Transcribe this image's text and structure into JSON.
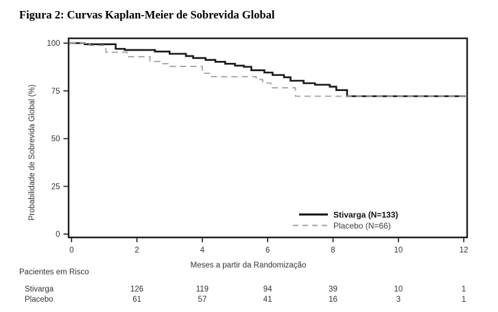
{
  "title": "Figura 2: Curvas Kaplan-Meier de Sobrevida Global",
  "chart_data": {
    "type": "line",
    "subtype": "kaplan-meier-step",
    "title": "Figura 2: Curvas Kaplan-Meier de Sobrevida Global",
    "xlabel": "Meses a partir da Randomização",
    "ylabel": "Probabilidade de Sobrevida Global (%)",
    "xlim": [
      0,
      12
    ],
    "ylim": [
      0,
      100
    ],
    "x_ticks": [
      0,
      2,
      4,
      6,
      8,
      10,
      12
    ],
    "y_ticks": [
      100,
      75,
      50,
      25,
      0
    ],
    "grid": false,
    "legend_position": "inside-bottom-right",
    "x_end": 12.05,
    "axis_color": "#1f1f1f",
    "series": [
      {
        "name": "Stivarga",
        "legend_label": "Stivarga (N=133)",
        "n": 133,
        "line_style": "solid",
        "color": "#1a1a1a",
        "steps": [
          [
            0,
            100
          ],
          [
            0.4,
            99.4
          ],
          [
            1.35,
            97.0
          ],
          [
            1.63,
            96.4
          ],
          [
            2.55,
            95.6
          ],
          [
            3.0,
            94.4
          ],
          [
            3.5,
            93.2
          ],
          [
            3.72,
            92.2
          ],
          [
            4.1,
            91.2
          ],
          [
            4.4,
            90.2
          ],
          [
            4.7,
            89.2
          ],
          [
            5.0,
            88.2
          ],
          [
            5.27,
            87.6
          ],
          [
            5.5,
            85.8
          ],
          [
            5.9,
            84.6
          ],
          [
            6.15,
            83.3
          ],
          [
            6.5,
            82.1
          ],
          [
            6.7,
            80.3
          ],
          [
            7.1,
            79.0
          ],
          [
            7.45,
            78.2
          ],
          [
            7.9,
            77.2
          ],
          [
            8.1,
            75.4
          ],
          [
            8.43,
            72.2
          ]
        ]
      },
      {
        "name": "Placebo",
        "legend_label": "Placebo (N=66)",
        "n": 66,
        "line_style": "dashed",
        "color": "#a3a3a3",
        "steps": [
          [
            0,
            100
          ],
          [
            0.55,
            98.8
          ],
          [
            1.05,
            95.2
          ],
          [
            1.7,
            92.9
          ],
          [
            2.4,
            90.4
          ],
          [
            2.75,
            89.2
          ],
          [
            2.95,
            87.8
          ],
          [
            4.0,
            84.2
          ],
          [
            4.25,
            82.4
          ],
          [
            5.65,
            80.9
          ],
          [
            5.85,
            79.1
          ],
          [
            6.1,
            76.6
          ],
          [
            6.85,
            72.2
          ]
        ]
      }
    ]
  },
  "risk_table": {
    "header": "Pacientes em Risco",
    "months": [
      2,
      4,
      6,
      8,
      10,
      12
    ],
    "rows": [
      {
        "label": "Stivarga",
        "values": [
          126,
          119,
          94,
          39,
          10,
          1
        ]
      },
      {
        "label": "Placebo",
        "values": [
          61,
          57,
          41,
          16,
          3,
          1
        ]
      }
    ]
  }
}
